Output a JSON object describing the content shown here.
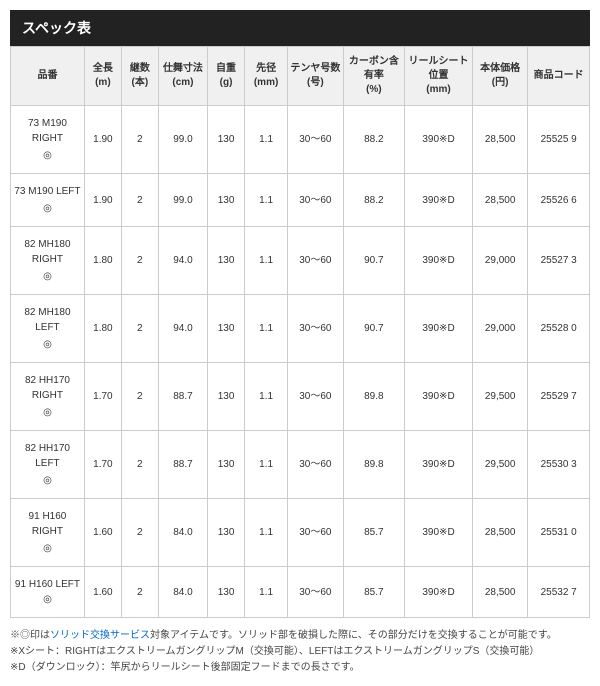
{
  "title": "スペック表",
  "columns": [
    {
      "l1": "品番",
      "l2": ""
    },
    {
      "l1": "全長",
      "l2": "(m)"
    },
    {
      "l1": "継数",
      "l2": "(本)"
    },
    {
      "l1": "仕舞寸法",
      "l2": "(cm)"
    },
    {
      "l1": "自重",
      "l2": "(g)"
    },
    {
      "l1": "先径",
      "l2": "(mm)"
    },
    {
      "l1": "テンヤ号数",
      "l2": "(号)"
    },
    {
      "l1": "カーボン含有率",
      "l2": "(%)"
    },
    {
      "l1": "リールシート位置",
      "l2": "(mm)"
    },
    {
      "l1": "本体価格",
      "l2": "(円)"
    },
    {
      "l1": "商品コード",
      "l2": ""
    }
  ],
  "rows": [
    {
      "model": "73 M190 RIGHT",
      "mark": "◎",
      "c1": "1.90",
      "c2": "2",
      "c3": "99.0",
      "c4": "130",
      "c5": "1.1",
      "c6": "30～60",
      "c7": "88.2",
      "c8": "390※D",
      "c9": "28,500",
      "c10": "25525 9"
    },
    {
      "model": "73 M190 LEFT",
      "mark": "◎",
      "c1": "1.90",
      "c2": "2",
      "c3": "99.0",
      "c4": "130",
      "c5": "1.1",
      "c6": "30～60",
      "c7": "88.2",
      "c8": "390※D",
      "c9": "28,500",
      "c10": "25526 6"
    },
    {
      "model": "82 MH180 RIGHT",
      "mark": "◎",
      "c1": "1.80",
      "c2": "2",
      "c3": "94.0",
      "c4": "130",
      "c5": "1.1",
      "c6": "30～60",
      "c7": "90.7",
      "c8": "390※D",
      "c9": "29,000",
      "c10": "25527 3"
    },
    {
      "model": "82 MH180 LEFT",
      "mark": "◎",
      "c1": "1.80",
      "c2": "2",
      "c3": "94.0",
      "c4": "130",
      "c5": "1.1",
      "c6": "30～60",
      "c7": "90.7",
      "c8": "390※D",
      "c9": "29,000",
      "c10": "25528 0"
    },
    {
      "model": "82 HH170 RIGHT",
      "mark": "◎",
      "c1": "1.70",
      "c2": "2",
      "c3": "88.7",
      "c4": "130",
      "c5": "1.1",
      "c6": "30～60",
      "c7": "89.8",
      "c8": "390※D",
      "c9": "29,500",
      "c10": "25529 7"
    },
    {
      "model": "82 HH170 LEFT",
      "mark": "◎",
      "c1": "1.70",
      "c2": "2",
      "c3": "88.7",
      "c4": "130",
      "c5": "1.1",
      "c6": "30～60",
      "c7": "89.8",
      "c8": "390※D",
      "c9": "29,500",
      "c10": "25530 3"
    },
    {
      "model": "91 H160 RIGHT",
      "mark": "◎",
      "c1": "1.60",
      "c2": "2",
      "c3": "84.0",
      "c4": "130",
      "c5": "1.1",
      "c6": "30～60",
      "c7": "85.7",
      "c8": "390※D",
      "c9": "28,500",
      "c10": "25531 0"
    },
    {
      "model": "91 H160 LEFT ◎",
      "mark": "",
      "c1": "1.60",
      "c2": "2",
      "c3": "84.0",
      "c4": "130",
      "c5": "1.1",
      "c6": "30～60",
      "c7": "85.7",
      "c8": "390※D",
      "c9": "28,500",
      "c10": "25532 7"
    }
  ],
  "notes": {
    "n1a": "※◎印は",
    "n1link": "ソリッド交換サービス",
    "n1b": "対象アイテムです。ソリッド部を破損した際に、その部分だけを交換することが可能です。",
    "n2": "※Xシート：RIGHTはエクストリームガングリップM（交換可能）、LEFTはエクストリームガングリップS（交換可能）",
    "n3": "※D（ダウンロック）：竿尻からリールシート後部固定フードまでの長さです。"
  }
}
